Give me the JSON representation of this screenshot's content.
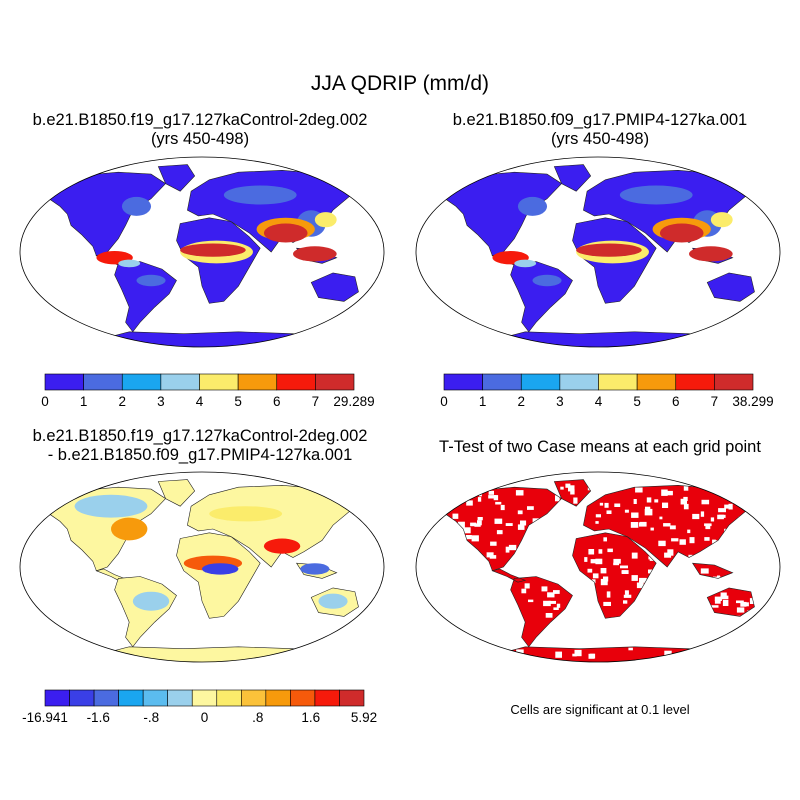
{
  "title": "JJA QDRIP (mm/d)",
  "panels": [
    {
      "id": "control",
      "title_line1": "b.e21.B1850.f19_g17.127kaControl-2deg.002",
      "title_line2": "(yrs 450-498)",
      "colorbar": {
        "colors": [
          "#3b1ef0",
          "#4b6be0",
          "#1aa6f0",
          "#9ad0ec",
          "#fbec6b",
          "#f79a0c",
          "#f61a0b",
          "#cf2b2b"
        ],
        "tick_labels": [
          "0",
          "1",
          "2",
          "3",
          "4",
          "5",
          "6",
          "7",
          "29.289"
        ]
      }
    },
    {
      "id": "pmip4",
      "title_line1": "b.e21.B1850.f09_g17.PMIP4-127ka.001",
      "title_line2": "(yrs 450-498)",
      "colorbar": {
        "colors": [
          "#3b1ef0",
          "#4b6be0",
          "#1aa6f0",
          "#9ad0ec",
          "#fbec6b",
          "#f79a0c",
          "#f61a0b",
          "#cf2b2b"
        ],
        "tick_labels": [
          "0",
          "1",
          "2",
          "3",
          "4",
          "5",
          "6",
          "7",
          "38.299"
        ]
      }
    },
    {
      "id": "difference",
      "title_line1": "b.e21.B1850.f19_g17.127kaControl-2deg.002",
      "title_line2": "- b.e21.B1850.f09_g17.PMIP4-127ka.001",
      "colorbar": {
        "colors": [
          "#3b1ef0",
          "#3a3fe6",
          "#4b6be0",
          "#1aa6f0",
          "#5bbcef",
          "#9ad0ec",
          "#fdf7a0",
          "#fbec6b",
          "#fbc23a",
          "#f79a0c",
          "#f65a0b",
          "#f61a0b",
          "#cf2b2b"
        ],
        "tick_labels": [
          "-16.941",
          "-1.6",
          "-.8",
          "0",
          ".8",
          "1.6",
          "5.92"
        ]
      }
    },
    {
      "id": "ttest",
      "title_line1": "T-Test of two Case means at each grid point",
      "note": "Cells are significant at 0.1 level",
      "significant_color": "#e8000b"
    }
  ]
}
